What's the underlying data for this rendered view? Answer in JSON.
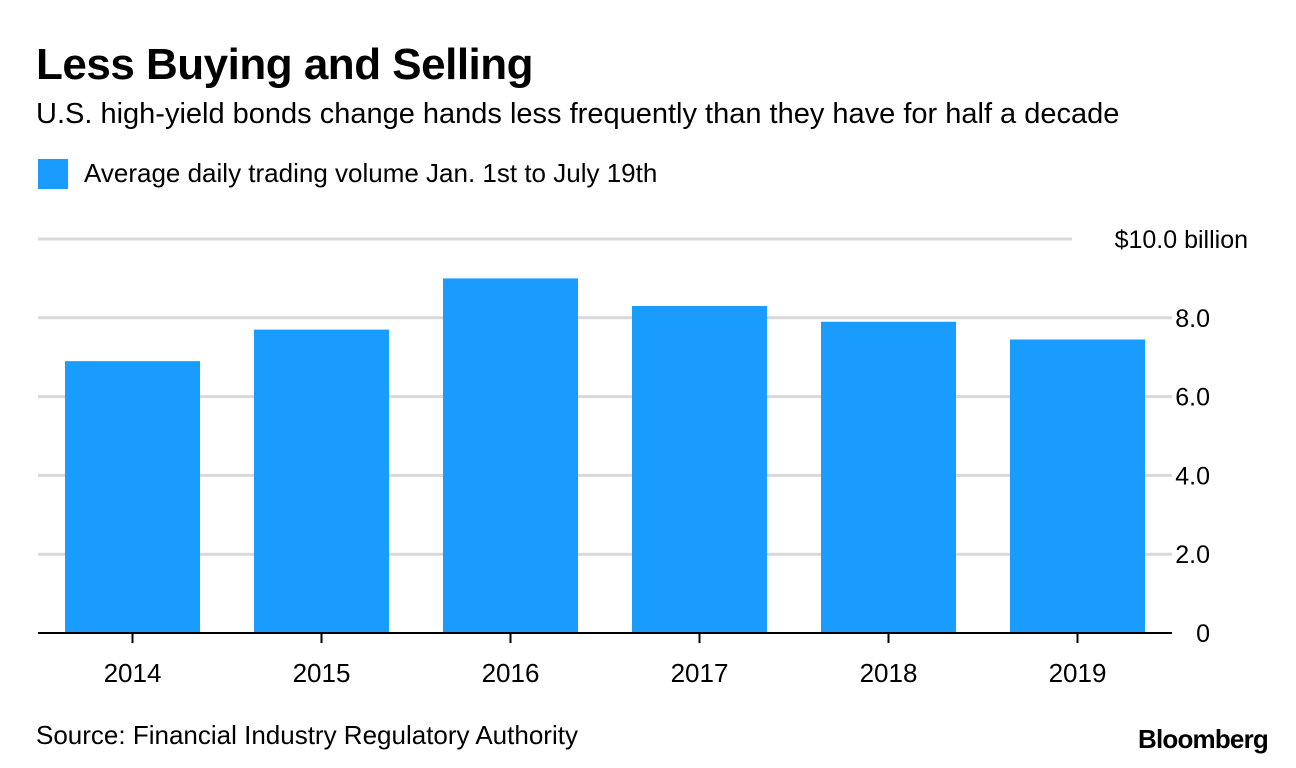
{
  "header": {
    "title": "Less Buying and Selling",
    "subtitle": "U.S. high-yield bonds change hands less frequently than they have for half a decade"
  },
  "legend": {
    "label": "Average daily trading volume Jan. 1st to July 19th",
    "color": "#1a9cff"
  },
  "footer": {
    "source": "Source: Financial Industry Regulatory Authority",
    "brand": "Bloomberg"
  },
  "chart_data": {
    "type": "bar",
    "title": "Less Buying and Selling",
    "subtitle": "U.S. high-yield bonds change hands less frequently than they have for half a decade",
    "categories": [
      "2014",
      "2015",
      "2016",
      "2017",
      "2018",
      "2019"
    ],
    "series": [
      {
        "name": "Average daily trading volume Jan. 1st to July 19th",
        "values": [
          6.9,
          7.7,
          9.0,
          8.3,
          7.9,
          7.45
        ]
      }
    ],
    "ylim": [
      0,
      10
    ],
    "yticks": [
      {
        "value": 0,
        "label": "0"
      },
      {
        "value": 2,
        "label": "2.0"
      },
      {
        "value": 4,
        "label": "4.0"
      },
      {
        "value": 6,
        "label": "6.0"
      },
      {
        "value": 8,
        "label": "8.0"
      },
      {
        "value": 10,
        "label": "$10.0 billion"
      }
    ],
    "y_axis_side": "right",
    "grid": true,
    "bar_color": "#1a9cff",
    "grid_color": "#d9d9d9",
    "xlabel": "",
    "ylabel": ""
  }
}
